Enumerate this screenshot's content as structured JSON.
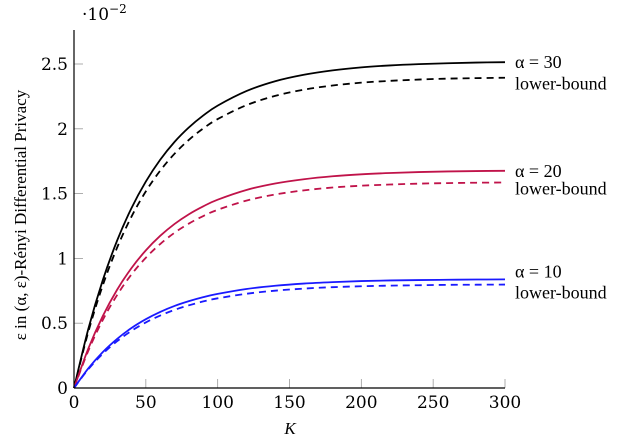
{
  "chart_data": {
    "type": "line",
    "title": "",
    "xlabel": "K",
    "ylabel": "ε in (α, ε)-Rényi Differential Privacy",
    "y_scale_label": "·10^−2",
    "xlim": [
      0,
      300
    ],
    "ylim": [
      0,
      2.75
    ],
    "xticks": [
      0,
      50,
      100,
      150,
      200,
      250,
      300
    ],
    "yticks": [
      0,
      0.5,
      1,
      1.5,
      2,
      2.5
    ],
    "grid": false,
    "legend_position": "inline-right",
    "x": [
      0,
      10,
      20,
      30,
      40,
      50,
      60,
      70,
      80,
      90,
      100,
      120,
      140,
      160,
      180,
      200,
      220,
      240,
      260,
      280,
      300
    ],
    "series": [
      {
        "name": "α = 30",
        "color": "#000000",
        "style": "solid",
        "values": [
          0,
          0.457,
          0.831,
          1.137,
          1.388,
          1.593,
          1.761,
          1.899,
          2.011,
          2.103,
          2.179,
          2.291,
          2.367,
          2.417,
          2.451,
          2.474,
          2.489,
          2.499,
          2.506,
          2.511,
          2.514
        ]
      },
      {
        "name": "lower-bound",
        "color": "#000000",
        "style": "dashed",
        "values": [
          0,
          0.435,
          0.791,
          1.083,
          1.322,
          1.517,
          1.677,
          1.808,
          1.915,
          2.003,
          2.075,
          2.182,
          2.254,
          2.302,
          2.334,
          2.356,
          2.37,
          2.38,
          2.387,
          2.391,
          2.394
        ]
      },
      {
        "name": "α = 20",
        "color": "#c0134a",
        "style": "solid",
        "values": [
          0,
          0.305,
          0.554,
          0.758,
          0.925,
          1.062,
          1.174,
          1.266,
          1.341,
          1.402,
          1.453,
          1.528,
          1.578,
          1.611,
          1.634,
          1.649,
          1.659,
          1.666,
          1.671,
          1.674,
          1.676
        ]
      },
      {
        "name": "lower-bound",
        "color": "#c0134a",
        "style": "dashed",
        "values": [
          0,
          0.288,
          0.524,
          0.717,
          0.876,
          1.005,
          1.111,
          1.198,
          1.269,
          1.327,
          1.375,
          1.446,
          1.493,
          1.525,
          1.547,
          1.561,
          1.57,
          1.577,
          1.581,
          1.584,
          1.586
        ]
      },
      {
        "name": "α = 10",
        "color": "#1a1aff",
        "style": "solid",
        "values": [
          0,
          0.152,
          0.277,
          0.379,
          0.463,
          0.531,
          0.587,
          0.633,
          0.67,
          0.701,
          0.726,
          0.764,
          0.789,
          0.806,
          0.817,
          0.825,
          0.83,
          0.833,
          0.835,
          0.837,
          0.838
        ]
      },
      {
        "name": "lower-bound",
        "color": "#1a1aff",
        "style": "dashed",
        "values": [
          0,
          0.145,
          0.264,
          0.361,
          0.441,
          0.506,
          0.559,
          0.603,
          0.638,
          0.668,
          0.692,
          0.727,
          0.751,
          0.767,
          0.778,
          0.785,
          0.79,
          0.793,
          0.796,
          0.797,
          0.798
        ]
      }
    ],
    "annotations": [
      {
        "text": "α = 30",
        "series": 0
      },
      {
        "text": "lower-bound",
        "series": 1
      },
      {
        "text": "α = 20",
        "series": 2
      },
      {
        "text": "lower-bound",
        "series": 3
      },
      {
        "text": "α = 10",
        "series": 4
      },
      {
        "text": "lower-bound",
        "series": 5
      }
    ]
  },
  "labels": {
    "x_axis_title": "K",
    "y_axis_title_prefix": "ε in (α, ε)-Rényi Differential Privacy",
    "scale_base": "·10",
    "scale_exp": "−2"
  }
}
